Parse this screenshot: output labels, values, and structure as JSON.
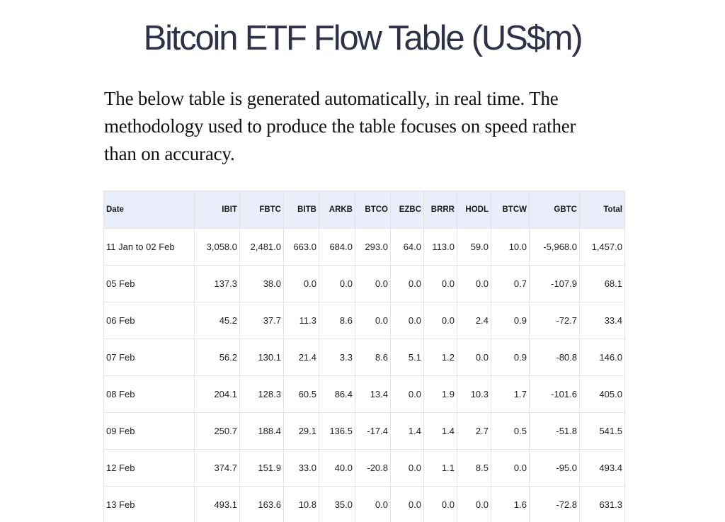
{
  "page": {
    "title": "Bitcoin ETF Flow Table (US$m)",
    "intro": "The below table is generated automatically, in real time. The methodology used to produce the table focuses on speed rather than on accuracy."
  },
  "table": {
    "columns": [
      "Date",
      "IBIT",
      "FBTC",
      "BITB",
      "ARKB",
      "BTCO",
      "EZBC",
      "BRRR",
      "HODL",
      "BTCW",
      "GBTC",
      "Total"
    ],
    "rows": [
      [
        "11 Jan to 02 Feb",
        "3,058.0",
        "2,481.0",
        "663.0",
        "684.0",
        "293.0",
        "64.0",
        "113.0",
        "59.0",
        "10.0",
        "-5,968.0",
        "1,457.0"
      ],
      [
        "05 Feb",
        "137.3",
        "38.0",
        "0.0",
        "0.0",
        "0.0",
        "0.0",
        "0.0",
        "0.0",
        "0.7",
        "-107.9",
        "68.1"
      ],
      [
        "06 Feb",
        "45.2",
        "37.7",
        "11.3",
        "8.6",
        "0.0",
        "0.0",
        "0.0",
        "2.4",
        "0.9",
        "-72.7",
        "33.4"
      ],
      [
        "07 Feb",
        "56.2",
        "130.1",
        "21.4",
        "3.3",
        "8.6",
        "5.1",
        "1.2",
        "0.0",
        "0.9",
        "-80.8",
        "146.0"
      ],
      [
        "08 Feb",
        "204.1",
        "128.3",
        "60.5",
        "86.4",
        "13.4",
        "0.0",
        "1.9",
        "10.3",
        "1.7",
        "-101.6",
        "405.0"
      ],
      [
        "09 Feb",
        "250.7",
        "188.4",
        "29.1",
        "136.5",
        "-17.4",
        "1.4",
        "1.4",
        "2.7",
        "0.5",
        "-51.8",
        "541.5"
      ],
      [
        "12 Feb",
        "374.7",
        "151.9",
        "33.0",
        "40.0",
        "-20.8",
        "0.0",
        "1.1",
        "8.5",
        "0.0",
        "-95.0",
        "493.4"
      ],
      [
        "13 Feb",
        "493.1",
        "163.6",
        "10.8",
        "35.0",
        "0.0",
        "0.0",
        "0.0",
        "0.0",
        "1.6",
        "-72.8",
        "631.3"
      ]
    ]
  }
}
